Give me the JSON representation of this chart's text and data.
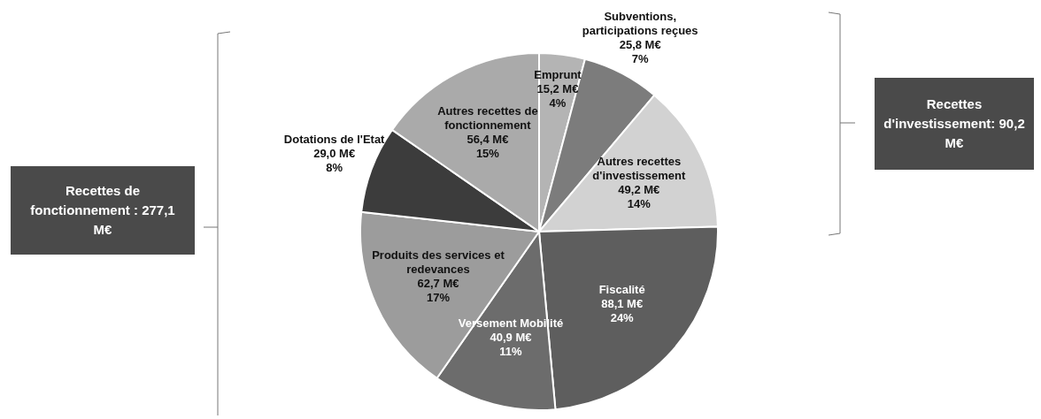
{
  "chart_data": {
    "type": "pie",
    "categories": [
      "Emprunt",
      "Subventions, participations reçues",
      "Autres recettes d'investissement",
      "Fiscalité",
      "Versement Mobilité",
      "Produits des services et redevances",
      "Dotations de l'Etat",
      "Autres recettes de fonctionnement"
    ],
    "values": [
      15.2,
      25.8,
      49.2,
      88.1,
      40.9,
      62.7,
      29.0,
      56.4
    ],
    "value_labels": [
      "15,2 M€\n4%",
      "25,8 M€\n7%",
      "49,2 M€\n14%",
      "88,1 M€\n24%",
      "40,9 M€\n11%",
      "62,7 M€\n17%",
      "29,0 M€\n8%",
      "56,4 M€\n15%"
    ],
    "colors": [
      "#b4b4b4",
      "#7c7c7c",
      "#d2d2d2",
      "#5e5e5e",
      "#6c6c6c",
      "#9c9c9c",
      "#3c3c3c",
      "#aaaaaa"
    ],
    "annotations": [
      "Recettes de fonctionnement : 277,1 M€",
      "Recettes d'investissement: 90,2 M€"
    ],
    "legend": false
  }
}
